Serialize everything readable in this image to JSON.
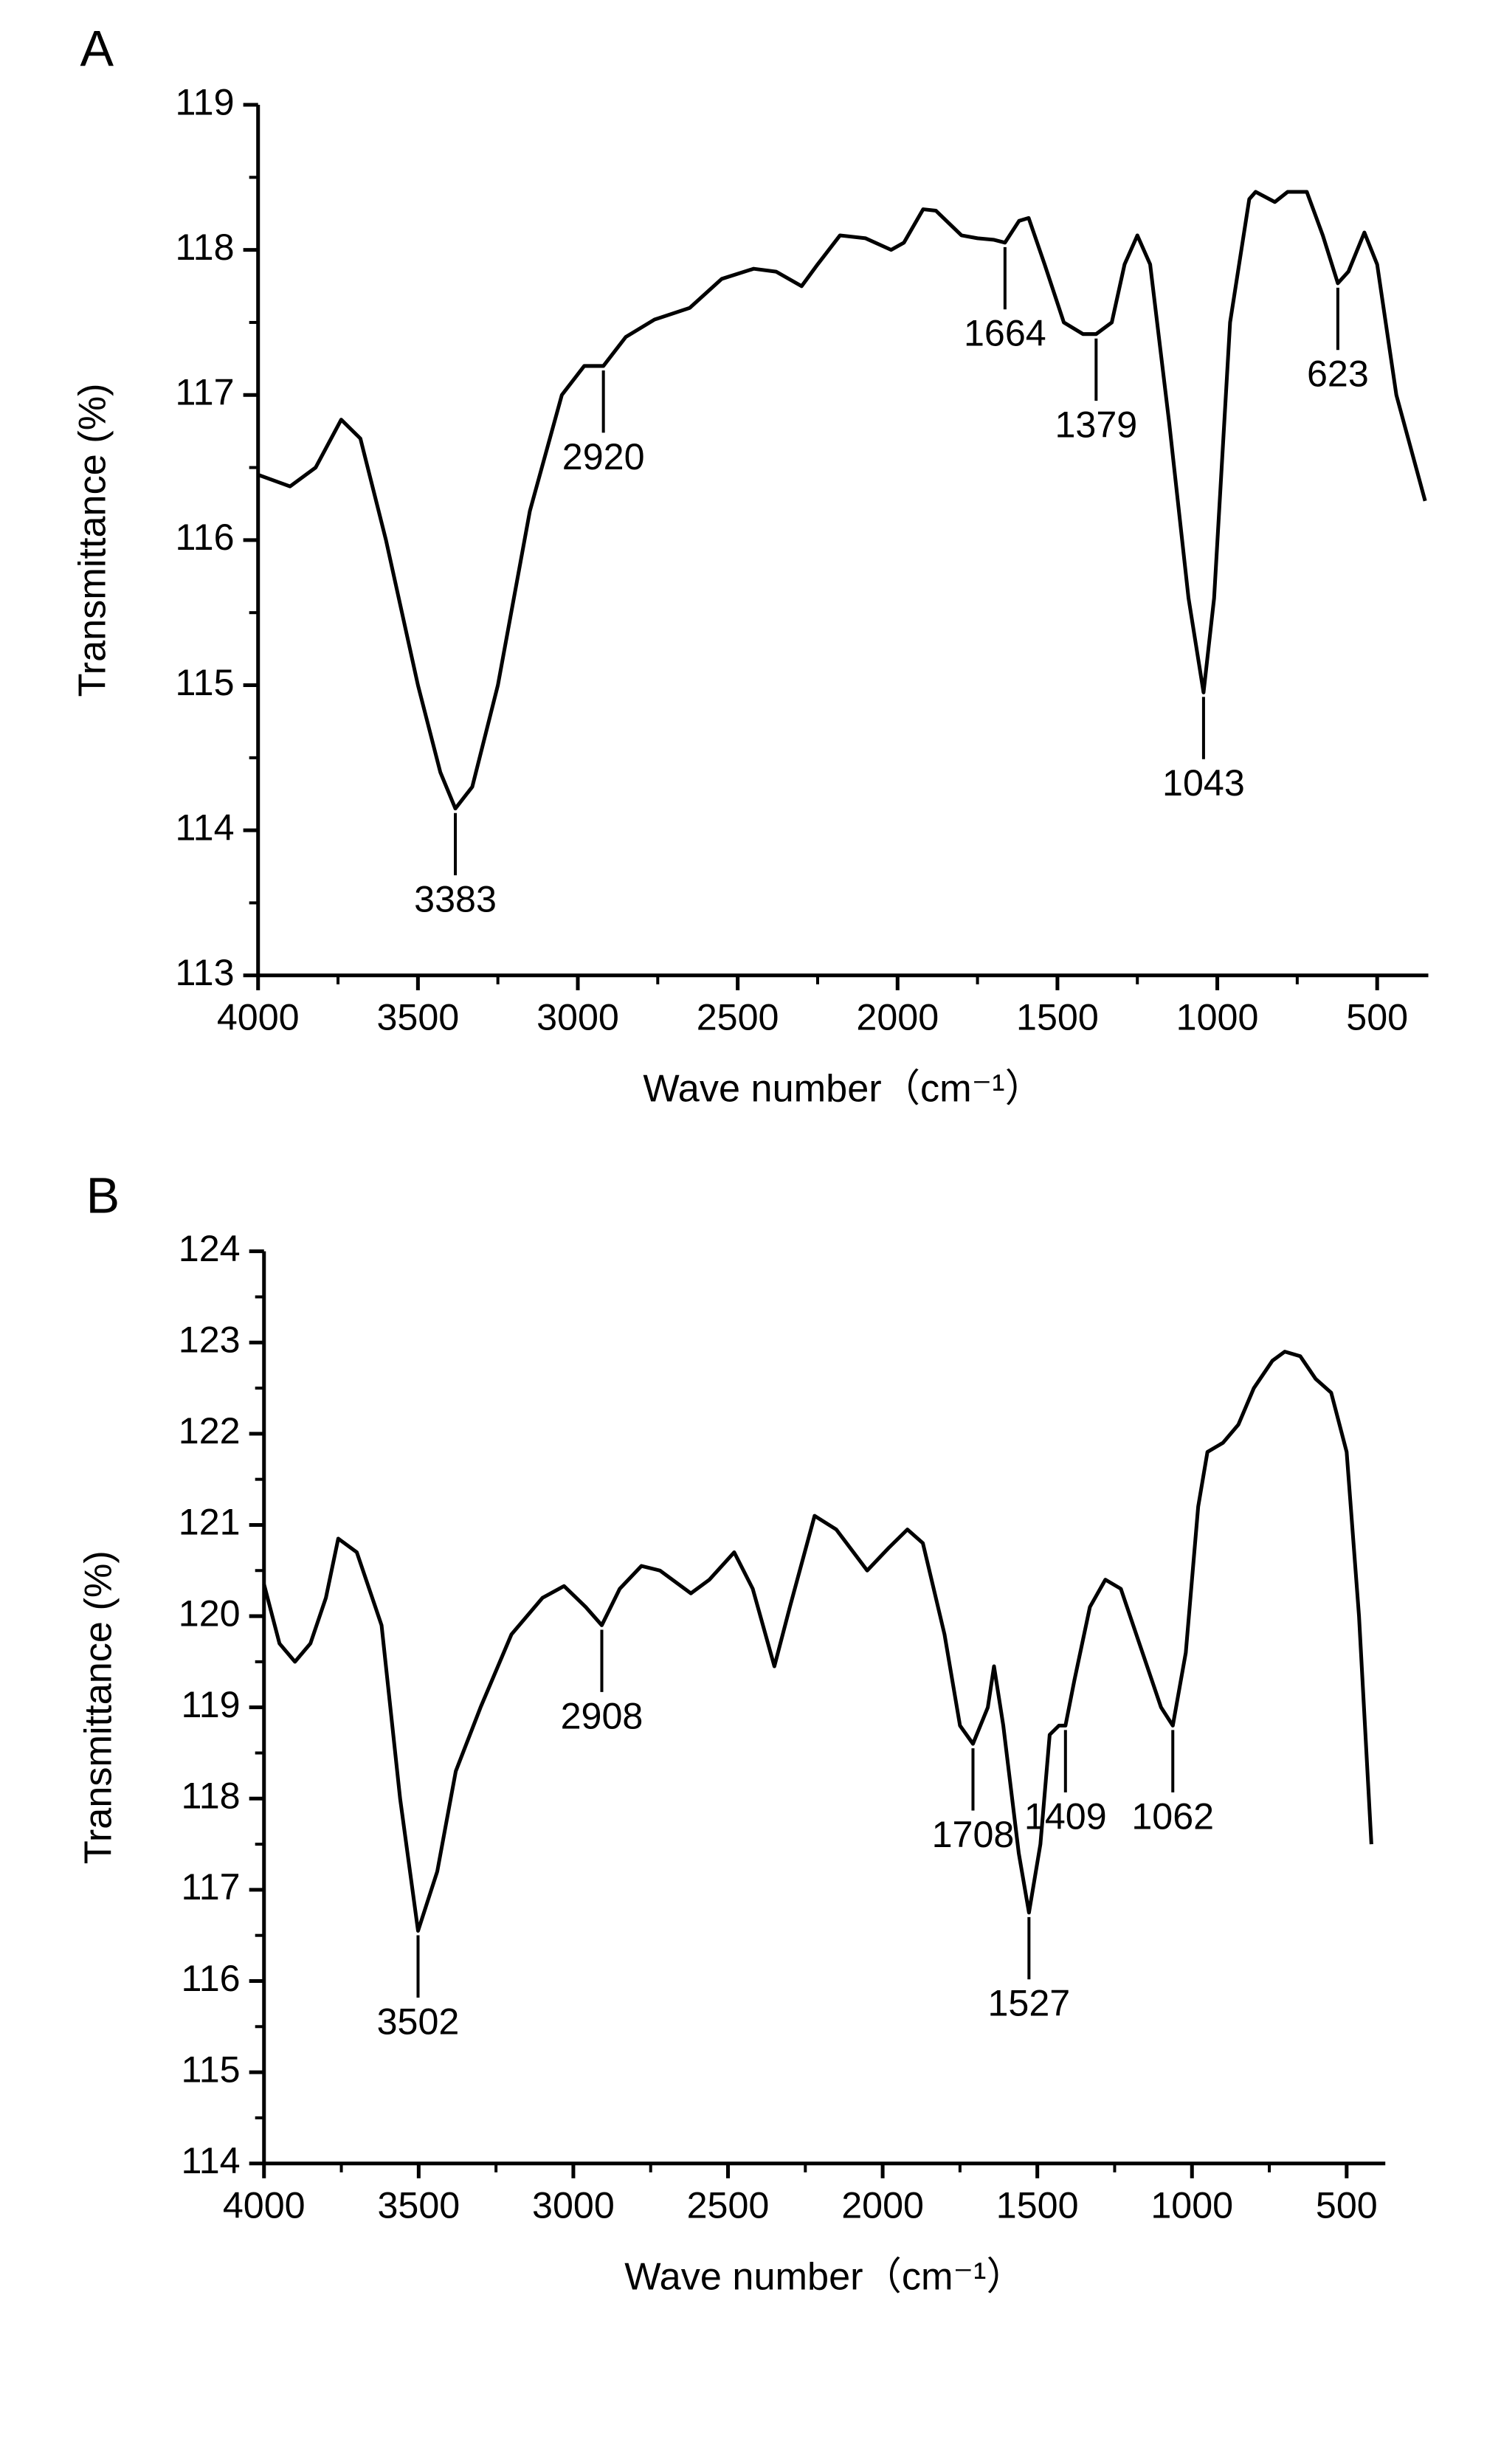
{
  "chart_data": [
    {
      "type": "line",
      "panel": "A",
      "x_label": "Wave number（cm⁻¹）",
      "y_label": "Transmittance (%)",
      "color": "#000000",
      "xlim": [
        4000,
        340
      ],
      "ylim": [
        113,
        119
      ],
      "xticks": [
        4000,
        3500,
        3000,
        2500,
        2000,
        1500,
        1000,
        500
      ],
      "yticks": [
        113,
        114,
        115,
        116,
        117,
        118,
        119
      ],
      "x": [
        4000,
        3900,
        3820,
        3740,
        3680,
        3600,
        3500,
        3430,
        3383,
        3330,
        3250,
        3150,
        3050,
        2980,
        2920,
        2850,
        2760,
        2650,
        2550,
        2450,
        2380,
        2300,
        2250,
        2180,
        2100,
        2020,
        1980,
        1920,
        1880,
        1800,
        1750,
        1700,
        1664,
        1620,
        1590,
        1540,
        1480,
        1420,
        1379,
        1330,
        1290,
        1250,
        1210,
        1150,
        1090,
        1043,
        1010,
        960,
        900,
        880,
        820,
        780,
        720,
        670,
        623,
        590,
        540,
        500,
        440,
        350
      ],
      "values": [
        116.45,
        116.37,
        116.5,
        116.83,
        116.7,
        116.0,
        115.0,
        114.4,
        114.15,
        114.3,
        115.0,
        116.2,
        117.0,
        117.2,
        117.2,
        117.4,
        117.52,
        117.6,
        117.8,
        117.87,
        117.85,
        117.75,
        117.9,
        118.1,
        118.08,
        118.0,
        118.05,
        118.28,
        118.27,
        118.1,
        118.08,
        118.07,
        118.05,
        118.2,
        118.22,
        117.9,
        117.5,
        117.42,
        117.42,
        117.5,
        117.9,
        118.1,
        117.9,
        116.8,
        115.6,
        114.95,
        115.6,
        117.5,
        118.35,
        118.4,
        118.33,
        118.4,
        118.4,
        118.1,
        117.77,
        117.85,
        118.12,
        117.9,
        117.0,
        116.27
      ],
      "peaks": [
        {
          "x": 3383,
          "y": 114.15
        },
        {
          "x": 2920,
          "y": 117.2
        },
        {
          "x": 1664,
          "y": 118.05
        },
        {
          "x": 1379,
          "y": 117.42
        },
        {
          "x": 1043,
          "y": 114.95
        },
        {
          "x": 623,
          "y": 117.77
        }
      ]
    },
    {
      "type": "line",
      "panel": "B",
      "x_label": "Wave number（cm⁻¹）",
      "y_label": "Transmittance (%)",
      "color": "#000000",
      "xlim": [
        4000,
        375
      ],
      "ylim": [
        114,
        124
      ],
      "xticks": [
        4000,
        3500,
        3000,
        2500,
        2000,
        1500,
        1000,
        500
      ],
      "yticks": [
        114,
        115,
        116,
        117,
        118,
        119,
        120,
        121,
        122,
        123,
        124
      ],
      "x": [
        4000,
        3950,
        3900,
        3850,
        3800,
        3760,
        3700,
        3620,
        3560,
        3502,
        3440,
        3380,
        3300,
        3200,
        3100,
        3030,
        2960,
        2908,
        2850,
        2780,
        2720,
        2620,
        2560,
        2480,
        2420,
        2350,
        2300,
        2220,
        2150,
        2050,
        1980,
        1920,
        1870,
        1800,
        1750,
        1708,
        1660,
        1640,
        1610,
        1560,
        1527,
        1490,
        1460,
        1430,
        1409,
        1380,
        1330,
        1280,
        1230,
        1170,
        1100,
        1062,
        1020,
        980,
        950,
        900,
        850,
        800,
        740,
        700,
        650,
        600,
        550,
        500,
        460,
        420
      ],
      "values": [
        120.35,
        119.7,
        119.5,
        119.7,
        120.2,
        120.85,
        120.7,
        119.9,
        118.0,
        116.55,
        117.2,
        118.3,
        119.0,
        119.8,
        120.2,
        120.33,
        120.1,
        119.9,
        120.3,
        120.55,
        120.5,
        120.25,
        120.4,
        120.7,
        120.3,
        119.45,
        120.1,
        121.1,
        120.95,
        120.5,
        120.75,
        120.95,
        120.8,
        119.8,
        118.8,
        118.6,
        119.0,
        119.45,
        118.8,
        117.4,
        116.75,
        117.5,
        118.7,
        118.8,
        118.8,
        119.3,
        120.1,
        120.4,
        120.3,
        119.7,
        119.0,
        118.8,
        119.6,
        121.2,
        121.8,
        121.9,
        122.1,
        122.5,
        122.8,
        122.9,
        122.85,
        122.6,
        122.45,
        121.8,
        120.0,
        117.5
      ],
      "peaks": [
        {
          "x": 3502,
          "y": 116.55
        },
        {
          "x": 2908,
          "y": 119.9
        },
        {
          "x": 1708,
          "y": 118.6
        },
        {
          "x": 1527,
          "y": 116.75
        },
        {
          "x": 1409,
          "y": 118.8
        },
        {
          "x": 1062,
          "y": 118.8
        }
      ]
    }
  ]
}
